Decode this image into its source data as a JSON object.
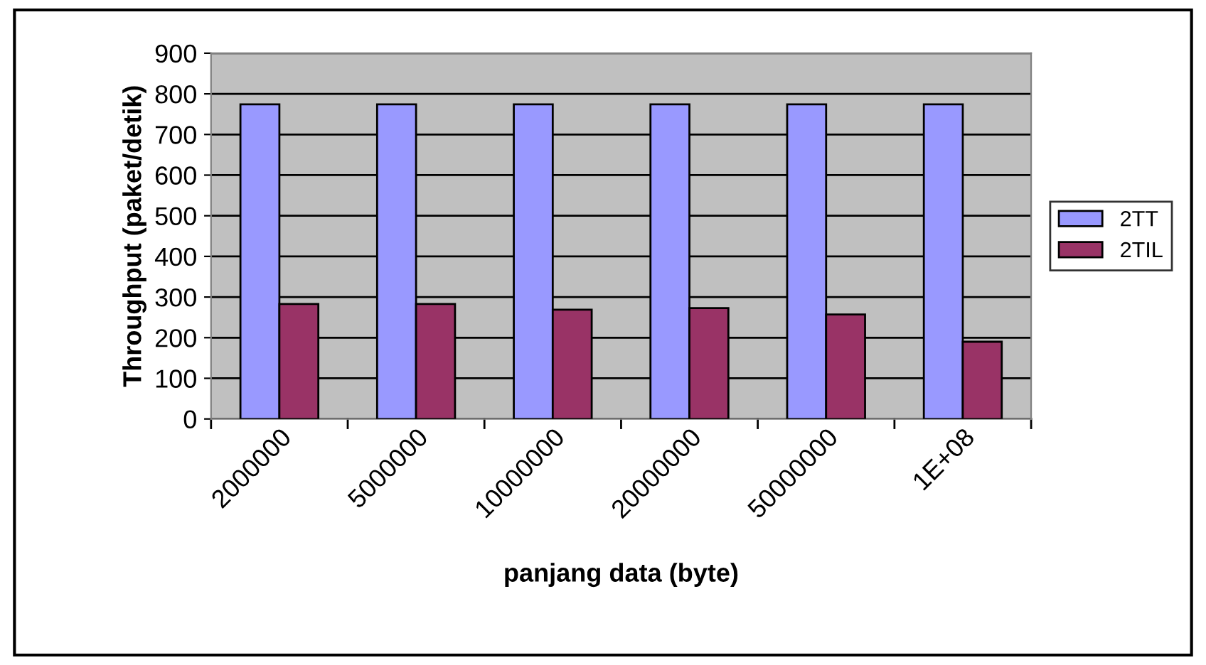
{
  "chart_data": {
    "type": "bar",
    "xlabel": "panjang data (byte)",
    "ylabel": "Throughput (paket/detik)",
    "categories": [
      "2000000",
      "5000000",
      "10000000",
      "20000000",
      "50000000",
      "1E+08"
    ],
    "series": [
      {
        "name": "2TT",
        "color": "#9999ff",
        "values": [
          774,
          774,
          774,
          774,
          774,
          774
        ]
      },
      {
        "name": "2TIL",
        "color": "#993366",
        "values": [
          283,
          283,
          269,
          273,
          257,
          190
        ]
      }
    ],
    "ylim": [
      0,
      900
    ],
    "yticks": [
      0,
      100,
      200,
      300,
      400,
      500,
      600,
      700,
      800,
      900
    ],
    "grid": "y",
    "legend": "right"
  }
}
